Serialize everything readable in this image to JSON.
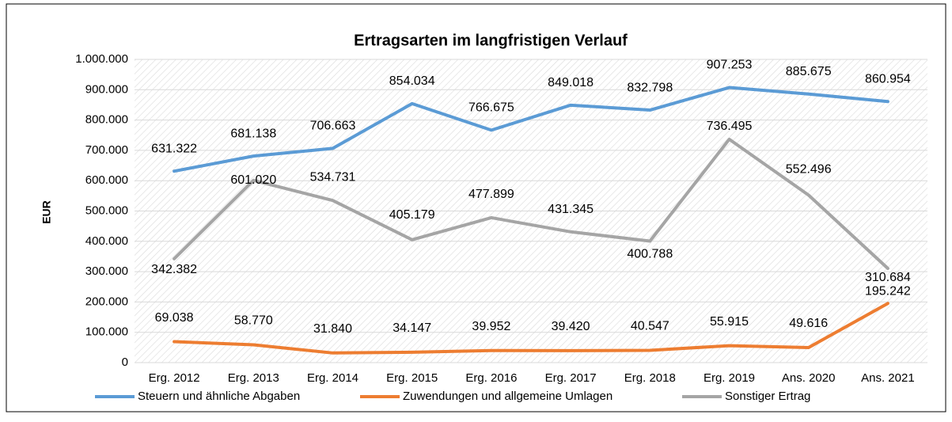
{
  "chart_data": {
    "type": "line",
    "title": "Ertragsarten im langfristigen Verlauf",
    "y_label": "EUR",
    "categories": [
      "Erg. 2012",
      "Erg. 2013",
      "Erg. 2014",
      "Erg. 2015",
      "Erg. 2016",
      "Erg. 2017",
      "Erg. 2018",
      "Erg. 2019",
      "Ans. 2020",
      "Ans. 2021"
    ],
    "series": [
      {
        "name": "Steuern und ähnliche Abgaben",
        "color": "#5b9bd5",
        "values": [
          631322,
          681138,
          706663,
          854034,
          766675,
          849018,
          832798,
          907253,
          885675,
          860954
        ],
        "value_labels": [
          "631.322",
          "681.138",
          "706.663",
          "854.034",
          "766.675",
          "849.018",
          "832.798",
          "907.253",
          "885.675",
          "860.954"
        ]
      },
      {
        "name": "Zuwendungen und allgemeine Umlagen",
        "color": "#ed7d31",
        "values": [
          69038,
          58770,
          31840,
          34147,
          39952,
          39420,
          40547,
          55915,
          49616,
          195242
        ],
        "value_labels": [
          "69.038",
          "58.770",
          "31.840",
          "34.147",
          "39.952",
          "39.420",
          "40.547",
          "55.915",
          "49.616",
          "195.242"
        ]
      },
      {
        "name": "Sonstiger Ertrag",
        "color": "#a5a5a5",
        "values": [
          342382,
          601020,
          534731,
          405179,
          477899,
          431345,
          400788,
          736495,
          552496,
          310684
        ],
        "value_labels": [
          "342.382",
          "601.020",
          "534.731",
          "405.179",
          "477.899",
          "431.345",
          "400.788",
          "736.495",
          "552.496",
          "310.684"
        ]
      }
    ],
    "ylim": [
      0,
      1000000
    ],
    "yticks": [
      0,
      {
        "value": 100000,
        "label": "100.000"
      },
      {
        "value": 200000,
        "label": "200.000"
      },
      {
        "value": 300000,
        "label": "300.000"
      },
      {
        "value": 400000,
        "label": "400.000"
      },
      {
        "value": 500000,
        "label": "500.000"
      },
      {
        "value": 600000,
        "label": "600.000"
      },
      {
        "value": 700000,
        "label": "700.000"
      },
      {
        "value": 800000,
        "label": "800.000"
      },
      {
        "value": 900000,
        "label": "900.000"
      },
      {
        "value": 1000000,
        "label": "1.000.000"
      }
    ],
    "grid": true,
    "legend": "bottom"
  }
}
